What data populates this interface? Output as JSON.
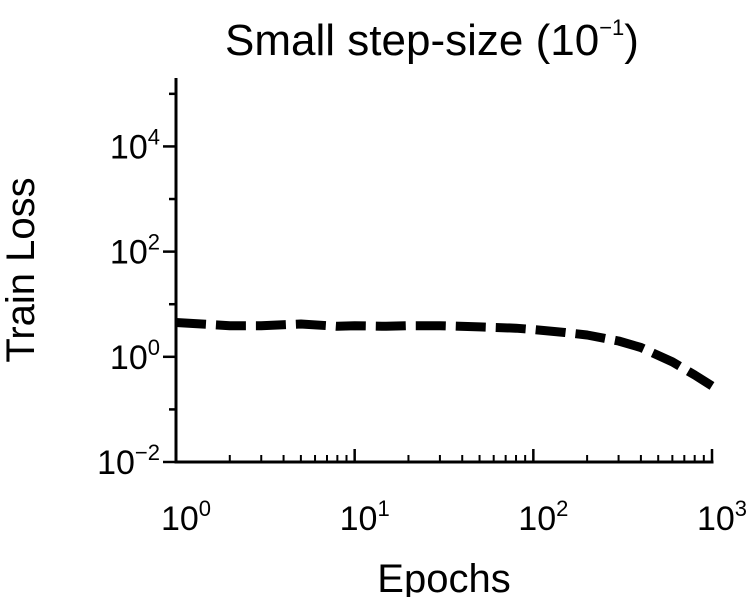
{
  "chart_data": {
    "type": "line",
    "title": "Small step-size (10",
    "title_sup": "−1",
    "title_close": ")",
    "xlabel": "Epochs",
    "ylabel": "Train Loss",
    "xscale": "log",
    "yscale": "log",
    "xlim": [
      1,
      1000
    ],
    "ylim": [
      0.01,
      200000
    ],
    "grid": false,
    "legend": "none",
    "line_style": "dashed",
    "line_color": "#000000",
    "x_ticks": [
      {
        "base": "10",
        "exp": "0",
        "value": 1
      },
      {
        "base": "10",
        "exp": "1",
        "value": 10
      },
      {
        "base": "10",
        "exp": "2",
        "value": 100
      },
      {
        "base": "10",
        "exp": "3",
        "value": 1000
      }
    ],
    "y_ticks": [
      {
        "base": "10",
        "exp": "−2",
        "value": 0.01
      },
      {
        "base": "10",
        "exp": "0",
        "value": 1
      },
      {
        "base": "10",
        "exp": "2",
        "value": 100
      },
      {
        "base": "10",
        "exp": "4",
        "value": 10000
      }
    ],
    "series": [
      {
        "x": [
          1,
          2,
          3,
          5,
          8,
          10,
          15,
          20,
          30,
          50,
          80,
          100,
          150,
          200,
          300,
          400,
          600,
          800,
          1000
        ],
        "y": [
          4.5,
          3.9,
          3.9,
          4.2,
          3.8,
          3.9,
          3.8,
          3.9,
          3.9,
          3.7,
          3.5,
          3.3,
          2.9,
          2.6,
          2.0,
          1.5,
          0.8,
          0.45,
          0.28
        ]
      }
    ]
  }
}
